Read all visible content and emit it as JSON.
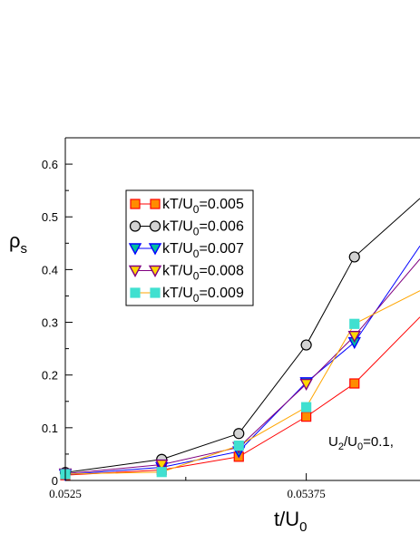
{
  "chart_data": {
    "type": "line",
    "xlabel": {
      "main": "t/U",
      "sub": "0"
    },
    "ylabel": {
      "main": "ρ",
      "sub": "s"
    },
    "xlim": [
      0.0525,
      0.05434
    ],
    "ylim": [
      0,
      0.65
    ],
    "x_ticks": [
      {
        "value": 0.0525,
        "label": "0.0525"
      },
      {
        "value": 0.05375,
        "label": "0.05375"
      }
    ],
    "y_ticks": [
      {
        "value": 0,
        "label": "0"
      },
      {
        "value": 0.1,
        "label": "0.1"
      },
      {
        "value": 0.2,
        "label": "0.2"
      },
      {
        "value": 0.3,
        "label": "0.3"
      },
      {
        "value": 0.4,
        "label": "0.4"
      },
      {
        "value": 0.5,
        "label": "0.5"
      },
      {
        "value": 0.6,
        "label": "0.6"
      }
    ],
    "annotation": {
      "main": "U",
      "sub1": "2",
      "mid": "/U",
      "sub2": "0",
      "rest": "=0.1,"
    },
    "legend_position": "upper-left",
    "series": [
      {
        "legend": {
          "pre": "kT/U",
          "sub": "0",
          "post": "=0.005"
        },
        "marker": "square",
        "line_color": "#ff0000",
        "fill": "#ff8c00",
        "stroke": "#ff0000",
        "points": [
          [
            0.0525,
            0.01
          ],
          [
            0.053,
            0.02
          ],
          [
            0.0534,
            0.045
          ],
          [
            0.05375,
            0.121
          ],
          [
            0.054,
            0.184
          ],
          [
            0.05434,
            0.31
          ]
        ]
      },
      {
        "legend": {
          "pre": "kT/U",
          "sub": "0",
          "post": "=0.006"
        },
        "marker": "circle",
        "line_color": "#000000",
        "fill": "#d3d3d3",
        "stroke": "#000000",
        "points": [
          [
            0.0525,
            0.015
          ],
          [
            0.053,
            0.04
          ],
          [
            0.0534,
            0.089
          ],
          [
            0.05375,
            0.257
          ],
          [
            0.054,
            0.424
          ],
          [
            0.05434,
            0.535
          ]
        ]
      },
      {
        "legend": {
          "pre": "kT/U",
          "sub": "0",
          "post": "=0.007"
        },
        "marker": "triangle-down",
        "line_color": "#0000ff",
        "fill": "#00c0a0",
        "stroke": "#0000ff",
        "points": [
          [
            0.0525,
            0.011
          ],
          [
            0.053,
            0.025
          ],
          [
            0.0534,
            0.055
          ],
          [
            0.05375,
            0.186
          ],
          [
            0.054,
            0.262
          ],
          [
            0.05434,
            0.445
          ]
        ]
      },
      {
        "legend": {
          "pre": "kT/U",
          "sub": "0",
          "post": "=0.008"
        },
        "marker": "triangle-down",
        "line_color": "#800080",
        "fill": "#ffd700",
        "stroke": "#800080",
        "points": [
          [
            0.0525,
            0.013
          ],
          [
            0.053,
            0.03
          ],
          [
            0.0534,
            0.063
          ],
          [
            0.05375,
            0.183
          ],
          [
            0.054,
            0.274
          ],
          [
            0.05434,
            0.42
          ]
        ]
      },
      {
        "legend": {
          "pre": "kT/U",
          "sub": "0",
          "post": "=0.009"
        },
        "marker": "square",
        "line_color": "#ffa500",
        "fill": "#40e0d0",
        "stroke": "#40e0d0",
        "points": [
          [
            0.0525,
            0.012
          ],
          [
            0.053,
            0.016
          ],
          [
            0.0534,
            0.066
          ],
          [
            0.05375,
            0.139
          ],
          [
            0.054,
            0.297
          ],
          [
            0.05434,
            0.36
          ]
        ]
      }
    ]
  }
}
